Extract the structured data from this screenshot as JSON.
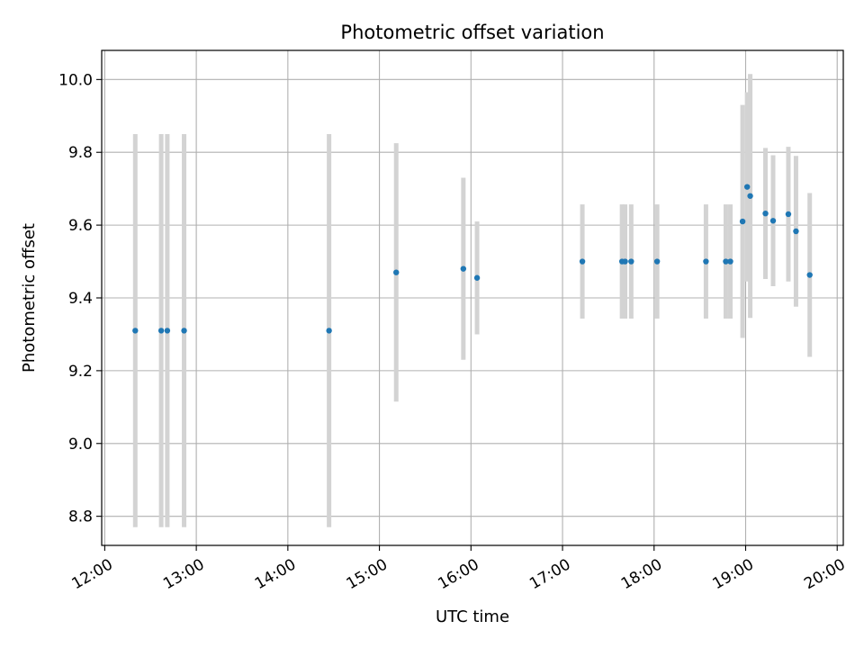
{
  "chart_data": {
    "type": "scatter",
    "title": "Photometric offset variation",
    "xlabel": "UTC time",
    "ylabel": "Photometric offset",
    "x_ticks": [
      "12:00",
      "13:00",
      "14:00",
      "15:00",
      "16:00",
      "17:00",
      "18:00",
      "19:00",
      "20:00"
    ],
    "y_ticks": [
      "8.8",
      "9.0",
      "9.2",
      "9.4",
      "9.6",
      "9.8",
      "10.0"
    ],
    "xlim": [
      "11:58",
      "20:04"
    ],
    "ylim": [
      8.72,
      10.08
    ],
    "grid": true,
    "colors": {
      "point": "#1f77b4",
      "errorbar": "#d3d3d3",
      "grid": "#b0b0b0"
    },
    "points": [
      {
        "time": "12:20",
        "y": 9.31,
        "err": 0.54
      },
      {
        "time": "12:37",
        "y": 9.31,
        "err": 0.54
      },
      {
        "time": "12:41",
        "y": 9.31,
        "err": 0.54
      },
      {
        "time": "12:52",
        "y": 9.31,
        "err": 0.54
      },
      {
        "time": "14:27",
        "y": 9.31,
        "err": 0.54
      },
      {
        "time": "15:11",
        "y": 9.47,
        "err": 0.355
      },
      {
        "time": "15:55",
        "y": 9.48,
        "err": 0.25
      },
      {
        "time": "16:04",
        "y": 9.455,
        "err": 0.155
      },
      {
        "time": "17:13",
        "y": 9.5,
        "err": 0.157
      },
      {
        "time": "17:39",
        "y": 9.5,
        "err": 0.157
      },
      {
        "time": "17:41",
        "y": 9.5,
        "err": 0.157
      },
      {
        "time": "17:45",
        "y": 9.5,
        "err": 0.157
      },
      {
        "time": "18:02",
        "y": 9.5,
        "err": 0.157
      },
      {
        "time": "18:34",
        "y": 9.5,
        "err": 0.157
      },
      {
        "time": "18:47",
        "y": 9.5,
        "err": 0.157
      },
      {
        "time": "18:50",
        "y": 9.5,
        "err": 0.157
      },
      {
        "time": "18:58",
        "y": 9.61,
        "err": 0.32
      },
      {
        "time": "19:01",
        "y": 9.705,
        "err": 0.26
      },
      {
        "time": "19:03",
        "y": 9.68,
        "err": 0.335
      },
      {
        "time": "19:13",
        "y": 9.632,
        "err": 0.18
      },
      {
        "time": "19:18",
        "y": 9.612,
        "err": 0.18
      },
      {
        "time": "19:28",
        "y": 9.63,
        "err": 0.185
      },
      {
        "time": "19:33",
        "y": 9.583,
        "err": 0.207
      },
      {
        "time": "19:42",
        "y": 9.463,
        "err": 0.225
      }
    ]
  }
}
